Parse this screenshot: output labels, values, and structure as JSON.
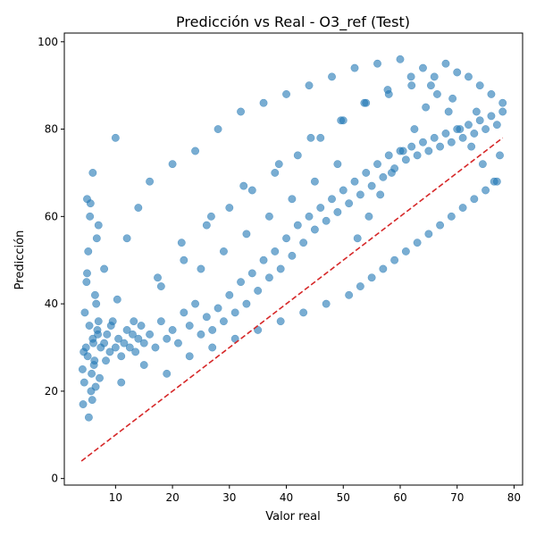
{
  "chart_data": {
    "type": "scatter",
    "title": "Predicción vs Real - O3_ref (Test)",
    "xlabel": "Valor real",
    "ylabel": "Predicción",
    "xlim": [
      1.0,
      81.5
    ],
    "ylim": [
      -1.5,
      102.0
    ],
    "x_ticks": [
      10,
      20,
      30,
      40,
      50,
      60,
      70,
      80
    ],
    "y_ticks": [
      0,
      20,
      40,
      60,
      80,
      100
    ],
    "grid": false,
    "legend": "none",
    "colors": {
      "points": "#1f77b4",
      "reference_line": "#d62728"
    },
    "reference_line": {
      "style": "dashed",
      "x": [
        4.0,
        78.0
      ],
      "y": [
        4.0,
        78.0
      ]
    },
    "series": [
      {
        "points_estimated": true,
        "x": [
          4.2,
          4.5,
          4.8,
          5.1,
          5.4,
          5.7,
          6.0,
          6.3,
          6.6,
          6.9,
          4.3,
          4.6,
          4.9,
          5.2,
          5.5,
          5.8,
          6.1,
          6.4,
          6.7,
          7.0,
          4.4,
          5.0,
          5.6,
          6.2,
          6.8,
          7.4,
          8.0,
          8.5,
          9.0,
          9.5,
          10.0,
          10.5,
          11.0,
          11.5,
          12.0,
          12.5,
          13.0,
          13.5,
          14.0,
          14.5,
          15.0,
          16.0,
          17.0,
          18.0,
          19.0,
          20.0,
          21.0,
          22.0,
          23.0,
          24.0,
          25.0,
          26.0,
          27.0,
          28.0,
          29.0,
          30.0,
          31.0,
          32.0,
          33.0,
          34.0,
          35.0,
          36.0,
          37.0,
          38.0,
          39.0,
          40.0,
          41.0,
          42.0,
          43.0,
          44.0,
          45.0,
          46.0,
          47.0,
          48.0,
          49.0,
          50.0,
          51.0,
          52.0,
          53.0,
          54.0,
          55.0,
          56.0,
          57.0,
          58.0,
          59.0,
          60.0,
          61.0,
          62.0,
          63.0,
          64.0,
          65.0,
          66.0,
          67.0,
          68.0,
          69.0,
          70.0,
          71.0,
          72.0,
          73.0,
          74.0,
          75.0,
          76.0,
          77.0,
          78.0,
          5.0,
          6.0,
          7.0,
          8.0,
          10.0,
          12.0,
          14.0,
          16.0,
          18.0,
          20.0,
          22.0,
          24.0,
          26.0,
          28.0,
          30.0,
          32.0,
          34.0,
          36.0,
          38.0,
          40.0,
          42.0,
          44.0,
          46.0,
          48.0,
          50.0,
          52.0,
          54.0,
          56.0,
          58.0,
          60.0,
          62.0,
          64.0,
          66.0,
          68.0,
          70.0,
          72.0,
          74.0,
          76.0,
          78.0,
          11.0,
          15.0,
          19.0,
          23.0,
          27.0,
          31.0,
          35.0,
          39.0,
          43.0,
          47.0,
          51.0,
          53.0,
          55.0,
          57.0,
          59.0,
          61.0,
          63.0,
          65.0,
          67.0,
          69.0,
          71.0,
          73.0,
          75.0,
          77.0,
          25.0,
          29.0,
          33.0,
          37.0,
          41.0,
          45.0,
          49.0,
          52.5,
          54.5,
          56.5,
          58.5,
          60.5,
          62.5,
          64.5,
          66.5,
          68.5,
          70.5,
          72.5,
          74.5,
          76.5,
          77.5,
          5.3,
          5.9,
          6.5,
          7.2,
          8.3,
          9.2,
          10.3,
          13.2,
          17.4,
          21.6,
          26.8,
          32.5,
          38.7,
          44.3,
          49.6,
          53.7,
          57.8,
          61.9,
          65.4,
          69.2,
          73.4
        ],
        "y": [
          25.0,
          22.0,
          30.0,
          28.0,
          35.0,
          20.0,
          32.0,
          27.0,
          40.0,
          33.0,
          17.0,
          38.0,
          45.0,
          52.0,
          60.0,
          24.0,
          31.0,
          42.0,
          55.0,
          36.0,
          29.0,
          47.0,
          63.0,
          26.0,
          34.0,
          30.0,
          31.0,
          33.0,
          29.0,
          36.0,
          30.0,
          32.0,
          28.0,
          31.0,
          34.0,
          30.0,
          33.0,
          29.0,
          32.0,
          35.0,
          31.0,
          33.0,
          30.0,
          36.0,
          32.0,
          34.0,
          31.0,
          38.0,
          35.0,
          40.0,
          33.0,
          37.0,
          34.0,
          39.0,
          36.0,
          42.0,
          38.0,
          45.0,
          40.0,
          47.0,
          43.0,
          50.0,
          46.0,
          52.0,
          48.0,
          55.0,
          51.0,
          58.0,
          54.0,
          60.0,
          57.0,
          62.0,
          59.0,
          64.0,
          61.0,
          66.0,
          63.0,
          68.0,
          65.0,
          70.0,
          67.0,
          72.0,
          69.0,
          74.0,
          71.0,
          75.0,
          73.0,
          76.0,
          74.0,
          77.0,
          75.0,
          78.0,
          76.0,
          79.0,
          77.0,
          80.0,
          78.0,
          81.0,
          79.0,
          82.0,
          80.0,
          83.0,
          81.0,
          84.0,
          64.0,
          70.0,
          58.0,
          48.0,
          78.0,
          55.0,
          62.0,
          68.0,
          44.0,
          72.0,
          50.0,
          75.0,
          58.0,
          80.0,
          62.0,
          84.0,
          66.0,
          86.0,
          70.0,
          88.0,
          74.0,
          90.0,
          78.0,
          92.0,
          82.0,
          94.0,
          86.0,
          95.0,
          88.0,
          96.0,
          90.0,
          94.0,
          92.0,
          95.0,
          93.0,
          92.0,
          90.0,
          88.0,
          86.0,
          22.0,
          26.0,
          24.0,
          28.0,
          30.0,
          32.0,
          34.0,
          36.0,
          38.0,
          40.0,
          42.0,
          44.0,
          46.0,
          48.0,
          50.0,
          52.0,
          54.0,
          56.0,
          58.0,
          60.0,
          62.0,
          64.0,
          66.0,
          68.0,
          48.0,
          52.0,
          56.0,
          60.0,
          64.0,
          68.0,
          72.0,
          55.0,
          60.0,
          65.0,
          70.0,
          75.0,
          80.0,
          85.0,
          88.0,
          84.0,
          80.0,
          76.0,
          72.0,
          68.0,
          74.0,
          14.0,
          18.0,
          21.0,
          23.0,
          27.0,
          35.0,
          41.0,
          36.0,
          46.0,
          54.0,
          60.0,
          67.0,
          72.0,
          78.0,
          82.0,
          86.0,
          89.0,
          92.0,
          90.0,
          87.0,
          84.0
        ]
      }
    ]
  }
}
